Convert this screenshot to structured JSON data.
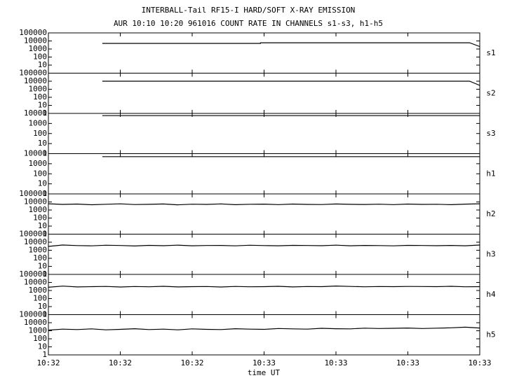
{
  "chart_data": {
    "type": "line",
    "title": "INTERBALL-Tail RF15-I HARD/SOFT X-RAY EMISSION",
    "subtitle": "AUR 10:10 10:20 961016  COUNT RATE IN CHANNELS s1-s3, h1-h5",
    "xlabel": "time UT",
    "log_y": true,
    "color": "#000000",
    "xlim": [
      0,
      60
    ],
    "xticks": [
      {
        "value": 0,
        "label": "10:32"
      },
      {
        "value": 10,
        "label": "10:32"
      },
      {
        "value": 20,
        "label": "10:32"
      },
      {
        "value": 30,
        "label": "10:33"
      },
      {
        "value": 40,
        "label": "10:33"
      },
      {
        "value": 50,
        "label": "10:33"
      },
      {
        "value": 60,
        "label": "10:33"
      }
    ],
    "panels": [
      {
        "name": "s1",
        "ylim": [
          1,
          100000
        ],
        "yticks": [
          10,
          100,
          1000,
          10000,
          100000
        ],
        "x": [
          7.5,
          29.5,
          29.5,
          58.6,
          60
        ],
        "values": [
          5000,
          5000,
          6000,
          6000,
          2000
        ]
      },
      {
        "name": "s2",
        "ylim": [
          1,
          100000
        ],
        "yticks": [
          1,
          10,
          100,
          1000,
          10000,
          100000
        ],
        "x": [
          7.5,
          58.6,
          60
        ],
        "values": [
          10000,
          10000,
          3000
        ]
      },
      {
        "name": "s3",
        "ylim": [
          1,
          10000
        ],
        "yticks": [
          1,
          10,
          100,
          1000,
          10000
        ],
        "x": [
          7.5,
          60
        ],
        "values": [
          6000,
          6000
        ]
      },
      {
        "name": "h1",
        "ylim": [
          1,
          10000
        ],
        "yticks": [
          1,
          10,
          100,
          1000,
          10000
        ],
        "x": [
          7.5,
          60
        ],
        "values": [
          5000,
          5000
        ]
      },
      {
        "name": "h2",
        "ylim": [
          1,
          100000
        ],
        "yticks": [
          1,
          10,
          100,
          1000,
          10000,
          100000
        ],
        "x": [
          0,
          2,
          4,
          6,
          8,
          10,
          12,
          14,
          16,
          18,
          20,
          22,
          24,
          26,
          28,
          30,
          32,
          34,
          36,
          38,
          40,
          42,
          44,
          46,
          48,
          50,
          52,
          54,
          56,
          58,
          60
        ],
        "values": [
          6000,
          5000,
          5500,
          4500,
          5200,
          5800,
          4800,
          5100,
          5600,
          4400,
          5300,
          5000,
          5700,
          4600,
          5200,
          5400,
          4700,
          5500,
          5000,
          4800,
          5600,
          5100,
          4900,
          5300,
          4700,
          5500,
          5000,
          5200,
          4600,
          5400,
          6000
        ]
      },
      {
        "name": "h3",
        "ylim": [
          1,
          100000
        ],
        "yticks": [
          1,
          10,
          100,
          1000,
          10000,
          100000
        ],
        "x": [
          0,
          2,
          4,
          6,
          8,
          10,
          12,
          14,
          16,
          18,
          20,
          22,
          24,
          26,
          28,
          30,
          32,
          34,
          36,
          38,
          40,
          42,
          44,
          46,
          48,
          50,
          52,
          54,
          56,
          58,
          60
        ],
        "values": [
          3000,
          4500,
          3800,
          3500,
          4200,
          3900,
          3400,
          4100,
          3700,
          4300,
          3600,
          3900,
          4000,
          3500,
          4200,
          3800,
          3600,
          4100,
          3900,
          3700,
          4300,
          3600,
          4000,
          3800,
          3500,
          4100,
          3900,
          3700,
          4000,
          3600,
          4500
        ]
      },
      {
        "name": "h4",
        "ylim": [
          1,
          100000
        ],
        "yticks": [
          1,
          10,
          100,
          1000,
          10000,
          100000
        ],
        "x": [
          0,
          2,
          4,
          6,
          8,
          10,
          12,
          14,
          16,
          18,
          20,
          22,
          24,
          26,
          28,
          30,
          32,
          34,
          36,
          38,
          40,
          42,
          44,
          46,
          48,
          50,
          52,
          54,
          56,
          58,
          60
        ],
        "values": [
          2500,
          3500,
          2800,
          3000,
          3200,
          2700,
          3100,
          2900,
          3300,
          2800,
          3000,
          3100,
          2700,
          3200,
          2900,
          3000,
          3300,
          2800,
          3100,
          3000,
          3600,
          3200,
          2900,
          3100,
          3000,
          3200,
          3100,
          3000,
          3300,
          2900,
          3000
        ]
      },
      {
        "name": "h5",
        "ylim": [
          1,
          100000
        ],
        "yticks": [
          1,
          10,
          100,
          1000,
          10000,
          100000
        ],
        "x": [
          0,
          2,
          4,
          6,
          8,
          10,
          12,
          14,
          16,
          18,
          20,
          22,
          24,
          26,
          28,
          30,
          32,
          34,
          36,
          38,
          40,
          42,
          44,
          46,
          48,
          50,
          52,
          54,
          56,
          58,
          60
        ],
        "values": [
          1200,
          1600,
          1400,
          1700,
          1300,
          1500,
          1800,
          1400,
          1600,
          1300,
          1700,
          1500,
          1400,
          1800,
          1600,
          1500,
          1900,
          1700,
          1600,
          2000,
          1800,
          1700,
          2100,
          1900,
          2000,
          2200,
          1900,
          2100,
          2300,
          2800,
          2200
        ]
      }
    ]
  }
}
